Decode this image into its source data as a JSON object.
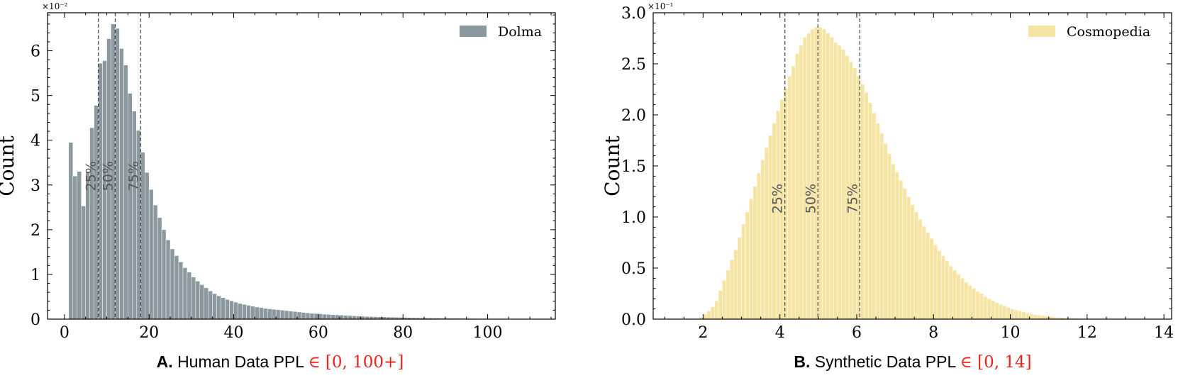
{
  "chart_data": [
    {
      "type": "bar",
      "panel_letter": "A.",
      "xlabel_text": "Human Data PPL",
      "xlabel_range": "∈ [0, 100+]",
      "ylabel": "Count",
      "y_offset_label": "×10⁻²",
      "x_ticks": [
        "0",
        "20",
        "40",
        "60",
        "80",
        "100"
      ],
      "x_tick_values": [
        0,
        20,
        40,
        60,
        80,
        100
      ],
      "y_ticks": [
        "0",
        "1",
        "2",
        "3",
        "4",
        "5",
        "6"
      ],
      "y_tick_values": [
        0,
        1,
        2,
        3,
        4,
        5,
        6
      ],
      "xlim": [
        -4,
        116
      ],
      "ylim": [
        0,
        6.85
      ],
      "bin_start": 1,
      "bin_width": 1,
      "values": [
        3.95,
        3.2,
        3.3,
        2.53,
        3.3,
        4.28,
        4.78,
        5.72,
        5.78,
        6.27,
        6.6,
        6.5,
        6.05,
        5.68,
        5.05,
        4.65,
        4.22,
        3.73,
        3.28,
        2.9,
        2.55,
        2.27,
        2.0,
        1.77,
        1.57,
        1.42,
        1.28,
        1.15,
        1.05,
        0.94,
        0.85,
        0.77,
        0.7,
        0.63,
        0.57,
        0.52,
        0.48,
        0.44,
        0.41,
        0.38,
        0.35,
        0.33,
        0.31,
        0.29,
        0.27,
        0.26,
        0.24,
        0.23,
        0.22,
        0.21,
        0.2,
        0.19,
        0.18,
        0.17,
        0.16,
        0.15,
        0.14,
        0.13,
        0.125,
        0.12,
        0.11,
        0.105,
        0.1,
        0.095,
        0.09,
        0.085,
        0.08,
        0.075,
        0.07,
        0.065,
        0.06,
        0.058,
        0.055,
        0.052,
        0.05,
        0.047,
        0.045,
        0.042,
        0.04,
        0.038,
        0.036,
        0.034,
        0.032,
        0.03,
        0.028,
        0.027,
        0.025,
        0.024,
        0.022,
        0.021,
        0.02,
        0.019,
        0.018,
        0.017,
        0.016,
        0.015,
        0.014,
        0.013,
        0.012,
        0.011,
        0.01,
        0.009,
        0.008,
        0.007,
        0.006,
        0.005,
        0.004,
        0.003,
        0.002,
        0.001
      ],
      "bar_color": "#8b999f",
      "series": [
        {
          "name": "Dolma"
        }
      ],
      "legend_position": "top-right",
      "quantiles": [
        {
          "label": "25%",
          "x": 8
        },
        {
          "label": "50%",
          "x": 12
        },
        {
          "label": "75%",
          "x": 18
        }
      ],
      "quantile_label_y": 3.2
    },
    {
      "type": "bar",
      "panel_letter": "B.",
      "xlabel_text": "Synthetic Data PPL",
      "xlabel_range": "∈ [0, 14]",
      "ylabel": "Count",
      "y_offset_label": "×10⁻¹",
      "x_ticks": [
        "2",
        "4",
        "6",
        "8",
        "10",
        "12",
        "14"
      ],
      "x_tick_values": [
        2,
        4,
        6,
        8,
        10,
        12,
        14
      ],
      "y_ticks": [
        "0.0",
        "0.5",
        "1.0",
        "1.5",
        "2.0",
        "2.5",
        "3.0"
      ],
      "y_tick_values": [
        0,
        0.5,
        1.0,
        1.5,
        2.0,
        2.5,
        3.0
      ],
      "xlim": [
        0.7,
        14.2
      ],
      "ylim": [
        0,
        3.0
      ],
      "bin_start": 1.9,
      "bin_width": 0.1,
      "values": [
        0.02,
        0.05,
        0.08,
        0.12,
        0.18,
        0.28,
        0.38,
        0.48,
        0.58,
        0.68,
        0.8,
        0.93,
        1.05,
        1.18,
        1.3,
        1.43,
        1.56,
        1.68,
        1.8,
        1.92,
        2.04,
        2.15,
        2.26,
        2.38,
        2.48,
        2.6,
        2.68,
        2.76,
        2.8,
        2.84,
        2.86,
        2.86,
        2.84,
        2.8,
        2.76,
        2.71,
        2.68,
        2.64,
        2.58,
        2.52,
        2.46,
        2.38,
        2.3,
        2.22,
        2.12,
        2.02,
        1.92,
        1.82,
        1.72,
        1.62,
        1.52,
        1.44,
        1.36,
        1.28,
        1.2,
        1.12,
        1.05,
        0.98,
        0.91,
        0.85,
        0.79,
        0.73,
        0.67,
        0.62,
        0.57,
        0.52,
        0.48,
        0.44,
        0.4,
        0.36,
        0.33,
        0.3,
        0.27,
        0.25,
        0.22,
        0.2,
        0.18,
        0.16,
        0.145,
        0.13,
        0.115,
        0.1,
        0.09,
        0.08,
        0.07,
        0.06,
        0.052,
        0.045,
        0.04,
        0.035,
        0.03,
        0.025,
        0.021,
        0.018,
        0.015,
        0.012,
        0.01,
        0.008,
        0.006,
        0.005,
        0.004,
        0.003,
        0.002,
        0.002,
        0.001,
        0.001,
        0.001,
        0.001,
        0.001,
        0.001,
        0.001,
        0.001
      ],
      "bar_color": "#f5e4a3",
      "series": [
        {
          "name": "Cosmopedia"
        }
      ],
      "legend_position": "top-right",
      "quantiles": [
        {
          "label": "25%",
          "x": 4.13
        },
        {
          "label": "50%",
          "x": 4.99
        },
        {
          "label": "75%",
          "x": 6.08
        }
      ],
      "quantile_label_y": 1.18
    }
  ]
}
